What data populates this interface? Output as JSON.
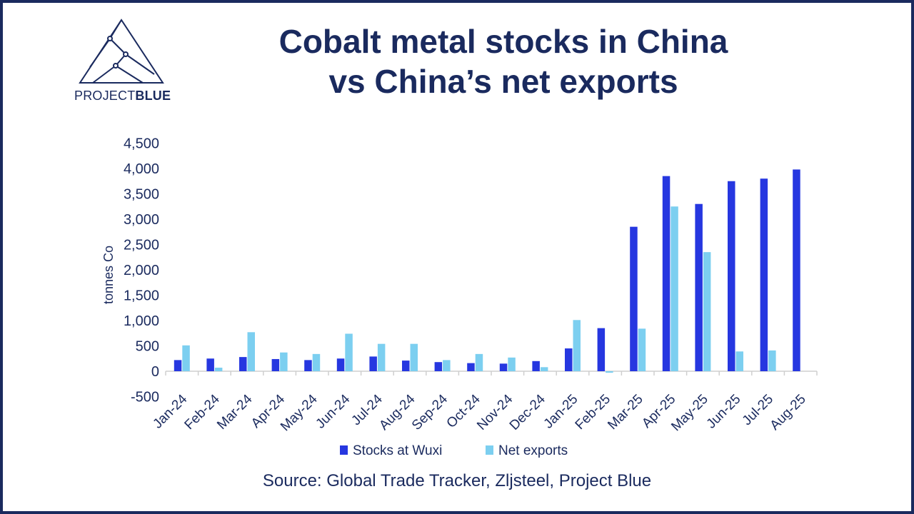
{
  "header": {
    "title_line1": "Cobalt metal stocks in China",
    "title_line2": "vs China’s net exports"
  },
  "logo": {
    "text_regular": "PROJECT",
    "text_bold": "BLUE",
    "icon": "triangle-network-icon"
  },
  "footer": {
    "source": "Source: Global Trade Tracker, Zljsteel, Project Blue"
  },
  "colors": {
    "navy": "#1a2a5e",
    "stocks": "#2637e0",
    "exports": "#7ccff0",
    "axis": "#cfcfcf"
  },
  "chart_data": {
    "type": "bar",
    "title": "Cobalt metal stocks in China vs China’s net exports",
    "ylabel": "tonnes Co",
    "xlabel": "",
    "ylim": [
      -500,
      4500
    ],
    "yticks": [
      -500,
      0,
      500,
      1000,
      1500,
      2000,
      2500,
      3000,
      3500,
      4000,
      4500
    ],
    "ytick_labels": [
      "-500",
      "0",
      "500",
      "1,000",
      "1,500",
      "2,000",
      "2,500",
      "3,000",
      "3,500",
      "4,000",
      "4,500"
    ],
    "grid": false,
    "legend": "bottom",
    "categories": [
      "Jan-24",
      "Feb-24",
      "Mar-24",
      "Apr-24",
      "May-24",
      "Jun-24",
      "Jul-24",
      "Aug-24",
      "Sep-24",
      "Oct-24",
      "Nov-24",
      "Dec-24",
      "Jan-25",
      "Feb-25",
      "Mar-25",
      "Apr-25",
      "May-25",
      "Jun-25",
      "Jul-25",
      "Aug-25"
    ],
    "series": [
      {
        "name": "Stocks at Wuxi",
        "color": "#2637e0",
        "values": [
          220,
          250,
          280,
          240,
          220,
          250,
          290,
          210,
          180,
          160,
          150,
          200,
          450,
          850,
          2850,
          3850,
          3300,
          3750,
          3800,
          3980
        ]
      },
      {
        "name": "Net exports",
        "color": "#7ccff0",
        "values": [
          510,
          70,
          770,
          370,
          340,
          740,
          540,
          540,
          220,
          340,
          270,
          80,
          1010,
          -30,
          840,
          3250,
          2350,
          390,
          410,
          null
        ]
      }
    ]
  }
}
